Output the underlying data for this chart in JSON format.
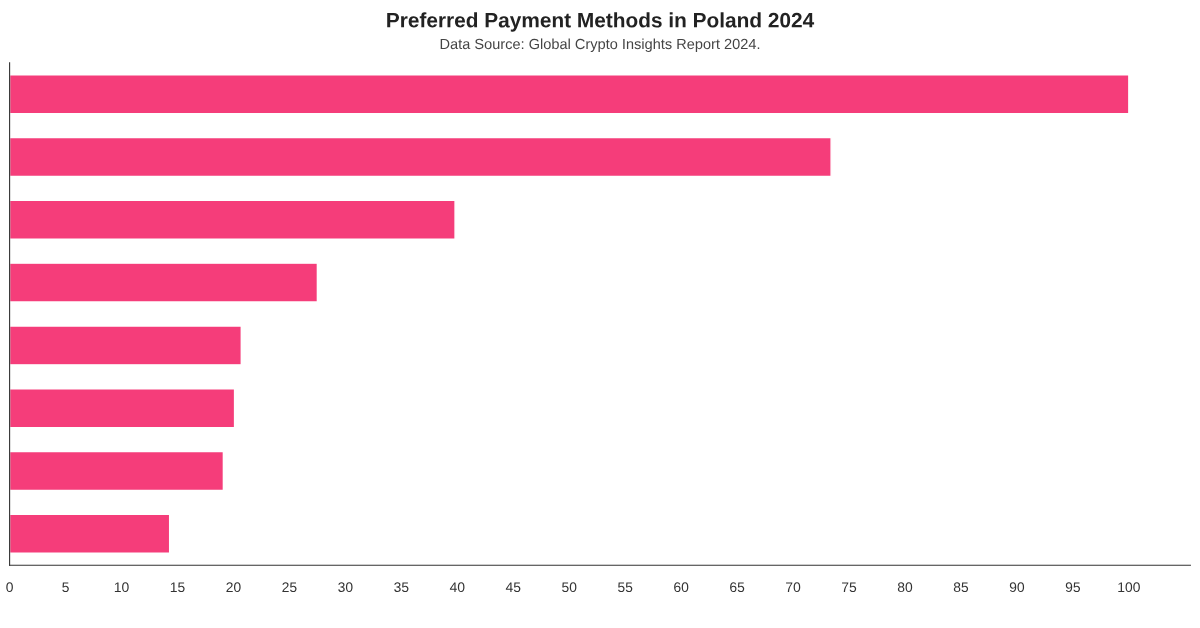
{
  "chart_data": {
    "type": "bar",
    "orientation": "horizontal",
    "title": "Preferred Payment Methods in Poland 2024",
    "subtitle": "Data Source: Global Crypto Insights Report 2024.",
    "categories": [
      null,
      null,
      null,
      null,
      null,
      null,
      null,
      null
    ],
    "values": [
      100,
      73.4,
      39.8,
      27.5,
      20.7,
      20.1,
      19.1,
      14.3
    ],
    "color": "#f53d7a",
    "xlim": [
      0,
      105.5
    ],
    "xticks": [
      0,
      5,
      10,
      15,
      20,
      25,
      30,
      35,
      40,
      45,
      50,
      55,
      60,
      65,
      70,
      75,
      80,
      85,
      90,
      95,
      100
    ],
    "grid": false
  }
}
